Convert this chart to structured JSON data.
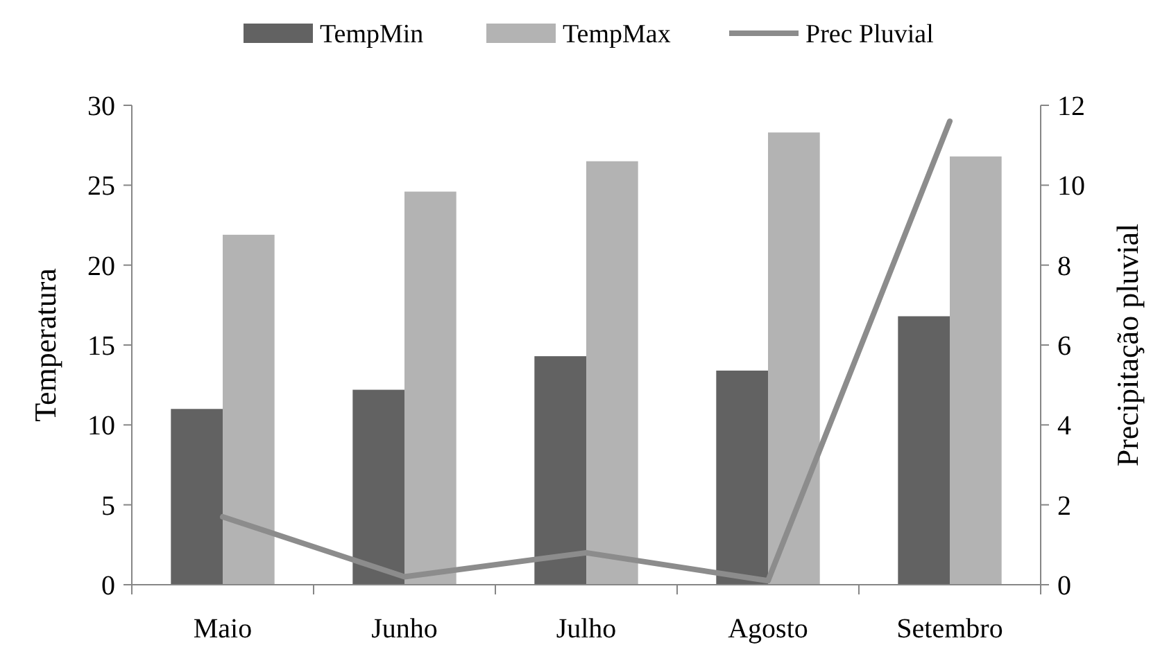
{
  "chart_data": {
    "type": "bar",
    "ylabel": "Temperatura",
    "y2label": "Precipitação pluvial",
    "categories": [
      "Maio",
      "Junho",
      "Julho",
      "Agosto",
      "Setembro"
    ],
    "series": [
      {
        "name": "TempMin",
        "color": "#626262",
        "values": [
          11,
          12.2,
          14.3,
          13.4,
          16.8
        ]
      },
      {
        "name": "TempMax",
        "color": "#b3b3b3",
        "values": [
          21.9,
          24.6,
          26.5,
          28.3,
          26.8
        ]
      },
      {
        "name": "Prec Pluvial",
        "type": "line",
        "axis": "y2",
        "color": "#8c8c8c",
        "values": [
          1.7,
          0.2,
          0.8,
          0.1,
          11.6
        ]
      }
    ],
    "ylim": [
      0,
      30
    ],
    "yticks": [
      0,
      5,
      10,
      15,
      20,
      25,
      30
    ],
    "y2lim": [
      0,
      12
    ],
    "y2ticks": [
      0,
      2,
      4,
      6,
      8,
      10,
      12
    ],
    "legend": "top",
    "grid": false,
    "marker": "none"
  }
}
